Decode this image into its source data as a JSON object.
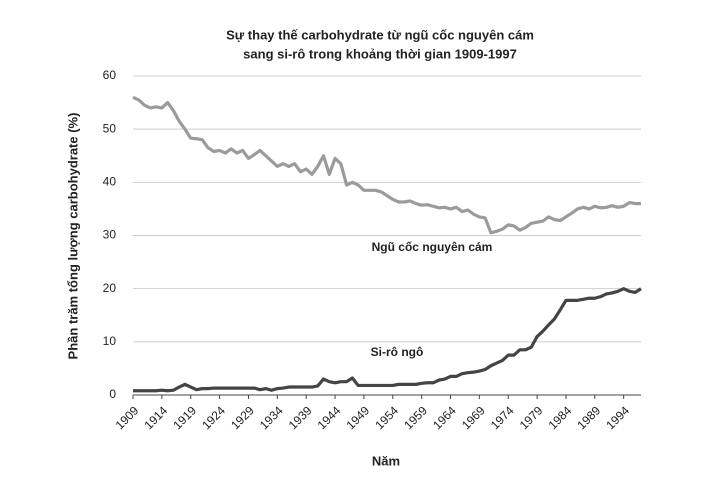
{
  "chart_data": {
    "type": "line",
    "title": [
      "Sự thay thế carbohydrate từ ngũ cốc nguyên cám",
      "sang si-rô trong khoảng thời gian 1909-1997"
    ],
    "xlabel": "Năm",
    "ylabel": "Phần trăm tổng lượng carbohydrate (%)",
    "x": [
      1909,
      1910,
      1911,
      1912,
      1913,
      1914,
      1915,
      1916,
      1917,
      1918,
      1919,
      1920,
      1921,
      1922,
      1923,
      1924,
      1925,
      1926,
      1927,
      1928,
      1929,
      1930,
      1931,
      1932,
      1933,
      1934,
      1935,
      1936,
      1937,
      1938,
      1939,
      1940,
      1941,
      1942,
      1943,
      1944,
      1945,
      1946,
      1947,
      1948,
      1949,
      1950,
      1951,
      1952,
      1953,
      1954,
      1955,
      1956,
      1957,
      1958,
      1959,
      1960,
      1961,
      1962,
      1963,
      1964,
      1965,
      1966,
      1967,
      1968,
      1969,
      1970,
      1971,
      1972,
      1973,
      1974,
      1975,
      1976,
      1977,
      1978,
      1979,
      1980,
      1981,
      1982,
      1983,
      1984,
      1985,
      1986,
      1987,
      1988,
      1989,
      1990,
      1991,
      1992,
      1993,
      1994,
      1995,
      1996,
      1997
    ],
    "series": [
      {
        "name": "Ngũ cốc nguyên cám",
        "color": "#9b9b9b",
        "values": [
          56,
          55.5,
          54.5,
          54,
          54.2,
          54,
          55,
          53.5,
          51.5,
          50,
          48.3,
          48.2,
          48,
          46.5,
          45.8,
          46,
          45.5,
          46.3,
          45.5,
          46,
          44.5,
          45.2,
          46,
          45,
          44,
          43,
          43.5,
          43,
          43.5,
          42,
          42.5,
          41.5,
          43,
          45,
          41.5,
          44.5,
          43.5,
          39.5,
          40,
          39.5,
          38.5,
          38.5,
          38.5,
          38.2,
          37.5,
          36.8,
          36.3,
          36.3,
          36.5,
          36,
          35.7,
          35.8,
          35.5,
          35.2,
          35.3,
          35,
          35.3,
          34.5,
          34.8,
          34,
          33.5,
          33.3,
          30.5,
          30.8,
          31.2,
          32,
          31.8,
          31,
          31.5,
          32.3,
          32.5,
          32.7,
          33.5,
          33,
          32.8,
          33.5,
          34.2,
          35,
          35.3,
          35,
          35.5,
          35.2,
          35.3,
          35.6,
          35.3,
          35.5,
          36.2,
          36,
          36
        ]
      },
      {
        "name": "Si-rô ngô",
        "color": "#444444",
        "values": [
          0.8,
          0.8,
          0.8,
          0.8,
          0.8,
          0.9,
          0.8,
          0.9,
          1.5,
          2,
          1.5,
          1,
          1.2,
          1.2,
          1.3,
          1.3,
          1.3,
          1.3,
          1.3,
          1.3,
          1.3,
          1.3,
          1,
          1.2,
          0.9,
          1.2,
          1.3,
          1.5,
          1.5,
          1.5,
          1.5,
          1.5,
          1.7,
          3,
          2.5,
          2.3,
          2.5,
          2.5,
          3.2,
          1.8,
          1.8,
          1.8,
          1.8,
          1.8,
          1.8,
          1.8,
          2,
          2,
          2,
          2,
          2.2,
          2.3,
          2.3,
          2.8,
          3,
          3.5,
          3.5,
          4,
          4.2,
          4.3,
          4.5,
          4.8,
          5.5,
          6,
          6.5,
          7.5,
          7.5,
          8.5,
          8.5,
          9,
          11,
          12,
          13.2,
          14.3,
          16,
          17.8,
          17.8,
          17.8,
          18,
          18.2,
          18.2,
          18.5,
          19,
          19.2,
          19.5,
          20,
          19.5,
          19.3,
          20
        ]
      }
    ],
    "xlim": [
      1909,
      1997
    ],
    "xticks": [
      1909,
      1914,
      1919,
      1924,
      1929,
      1934,
      1939,
      1944,
      1949,
      1954,
      1959,
      1964,
      1969,
      1974,
      1979,
      1984,
      1989,
      1994
    ],
    "ylim": [
      0,
      60
    ],
    "yticks": [
      0,
      10,
      20,
      30,
      40,
      50,
      60
    ],
    "grid": true
  }
}
